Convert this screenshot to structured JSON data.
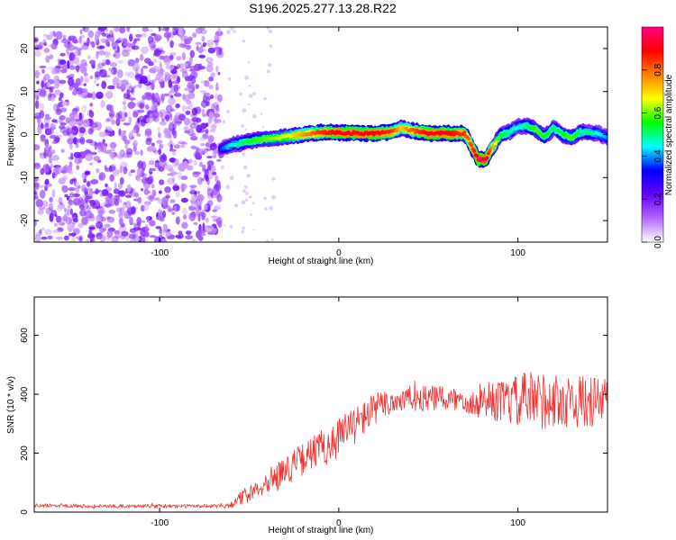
{
  "chart_data": [
    {
      "type": "heatmap",
      "title": "S196.2025.277.13.28.R22",
      "xlabel": "Height of straight line (km)",
      "ylabel": "Frequency (Hz)",
      "xlim": [
        -170,
        150
      ],
      "ylim": [
        -25,
        25
      ],
      "xticks": [
        -100,
        0,
        100
      ],
      "yticks": [
        -20,
        -10,
        0,
        10,
        20
      ],
      "colorbar": {
        "label": "Normalized spectral amplitude",
        "range": [
          0,
          1
        ],
        "ticks": [
          "0.0",
          "0.2",
          "0.4",
          "0.6",
          "0.8"
        ],
        "colormap": [
          "#ffffff",
          "#b266ff",
          "#6600ff",
          "#0000ff",
          "#00ffff",
          "#00ff00",
          "#ffff00",
          "#ff8000",
          "#ff0000",
          "#ff0080"
        ]
      },
      "noise_region_end_km": -66,
      "ridge": {
        "x": [
          -66,
          -60,
          -50,
          -40,
          -30,
          -20,
          -10,
          0,
          10,
          20,
          30,
          35,
          40,
          50,
          60,
          70,
          72,
          75,
          78,
          82,
          85,
          90,
          95,
          100,
          105,
          110,
          115,
          120,
          125,
          130,
          135,
          140,
          145,
          150
        ],
        "freq": [
          -3.5,
          -2.5,
          -1.5,
          -1.0,
          -0.5,
          0,
          0.5,
          0.5,
          0.3,
          0.3,
          0.6,
          1.5,
          1.0,
          0.3,
          0.3,
          0.2,
          -0.8,
          -3.5,
          -5.8,
          -5.8,
          -3.5,
          -0.3,
          0.5,
          1.8,
          2.0,
          1.2,
          -0.6,
          1.5,
          0.0,
          -0.8,
          0.6,
          0.4,
          0.2,
          -0.8
        ],
        "peak_amplitude": [
          0.35,
          0.45,
          0.55,
          0.6,
          0.65,
          0.75,
          0.85,
          0.9,
          0.9,
          0.9,
          0.85,
          0.7,
          0.8,
          0.9,
          0.9,
          0.85,
          0.8,
          0.85,
          0.95,
          0.95,
          0.8,
          0.55,
          0.5,
          0.45,
          0.5,
          0.6,
          0.55,
          0.5,
          0.55,
          0.6,
          0.5,
          0.5,
          0.45,
          0.4
        ]
      }
    },
    {
      "type": "line",
      "xlabel": "Height of straight line (km)",
      "ylabel": "SNR (10 * v/v)",
      "xlim": [
        -170,
        150
      ],
      "ylim": [
        0,
        730
      ],
      "xticks": [
        -100,
        0,
        100
      ],
      "yticks": [
        0,
        200,
        400,
        600
      ],
      "series": [
        {
          "name": "SNR",
          "color": "#ee3333",
          "x": [
            -170,
            -150,
            -130,
            -110,
            -90,
            -70,
            -60,
            -55,
            -50,
            -45,
            -40,
            -35,
            -30,
            -25,
            -20,
            -15,
            -10,
            -5,
            0,
            5,
            10,
            15,
            20,
            25,
            30,
            35,
            40,
            45,
            50,
            55,
            60,
            65,
            70,
            75,
            80,
            85,
            90,
            95,
            100,
            105,
            110,
            115,
            120,
            125,
            130,
            135,
            140,
            145,
            150
          ],
          "y": [
            22,
            22,
            20,
            20,
            20,
            20,
            25,
            45,
            65,
            85,
            105,
            125,
            140,
            160,
            180,
            200,
            215,
            235,
            255,
            280,
            300,
            325,
            350,
            365,
            375,
            380,
            385,
            385,
            385,
            385,
            385,
            380,
            385,
            370,
            380,
            375,
            375,
            375,
            375,
            380,
            375,
            380,
            375,
            375,
            375,
            375,
            375,
            370,
            380
          ],
          "noise_amplitude": [
            6,
            6,
            6,
            6,
            6,
            6,
            12,
            25,
            30,
            35,
            40,
            45,
            50,
            55,
            55,
            60,
            65,
            70,
            70,
            70,
            65,
            60,
            55,
            50,
            50,
            45,
            45,
            45,
            45,
            45,
            45,
            45,
            45,
            50,
            60,
            65,
            70,
            80,
            90,
            100,
            110,
            100,
            95,
            90,
            90,
            90,
            90,
            90,
            90
          ]
        }
      ]
    }
  ]
}
